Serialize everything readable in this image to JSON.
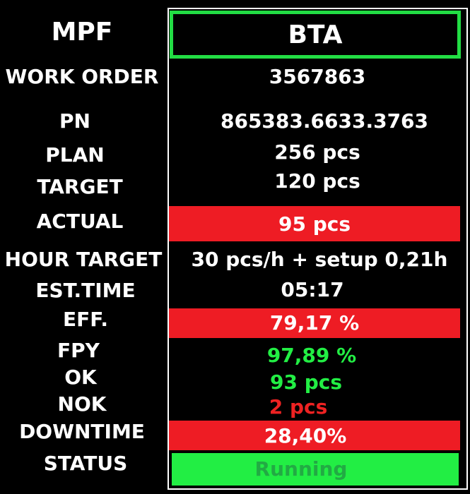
{
  "header": {
    "left_title": "MPF",
    "right_title": "BTA"
  },
  "rows": {
    "work_order": {
      "label": "WORK ORDER",
      "value": "3567863"
    },
    "pn": {
      "label": "PN",
      "value": "865383.6633.3763"
    },
    "plan": {
      "label": "PLAN",
      "value": "256 pcs"
    },
    "target": {
      "label": "TARGET",
      "value": "120 pcs"
    },
    "actual": {
      "label": "ACTUAL",
      "value": "95 pcs"
    },
    "hour_target": {
      "label": "HOUR TARGET",
      "value": "30 pcs/h + setup 0,21h"
    },
    "est_time": {
      "label": "EST.TIME",
      "value": "05:17"
    },
    "eff": {
      "label": "EFF.",
      "value": "79,17 %"
    },
    "fpy": {
      "label": "FPY",
      "value": "97,89 %"
    },
    "ok": {
      "label": "OK",
      "value": "93 pcs"
    },
    "nok": {
      "label": "NOK",
      "value": "2 pcs"
    },
    "downtime": {
      "label": "DOWNTIME",
      "value": "28,40%"
    },
    "status": {
      "label": "STATUS",
      "value": "Running"
    }
  },
  "colors": {
    "alert_red": "#ee1c24",
    "ok_green": "#22ee44",
    "header_border": "#22dd44",
    "background": "#000000"
  }
}
